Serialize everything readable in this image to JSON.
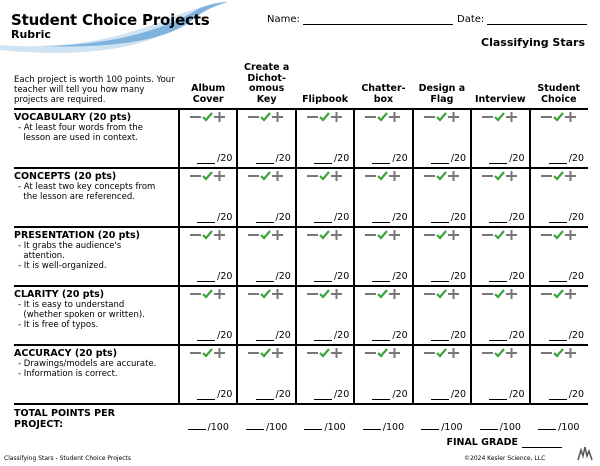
{
  "header": {
    "title": "Student Choice Projects",
    "subtitle": "Rubric",
    "name_label": "Name:",
    "date_label": "Date:",
    "topic": "Classifying Stars"
  },
  "intro": "Each project is worth 100 points. Your teacher will tell you how many projects are required.",
  "columns": [
    {
      "line1": "Album",
      "line2": "Cover"
    },
    {
      "line1": "Create a Dichot-",
      "line2": "omous Key"
    },
    {
      "line1": "",
      "line2": "Flipbook"
    },
    {
      "line1": "Chatter-",
      "line2": "box"
    },
    {
      "line1": "Design a",
      "line2": "Flag"
    },
    {
      "line1": "",
      "line2": "Interview"
    },
    {
      "line1": "Student",
      "line2": "Choice"
    }
  ],
  "criteria": [
    {
      "title": "VOCABULARY (20 pts)",
      "bullets": [
        "- At least four words from the",
        "  lesson are used in context."
      ]
    },
    {
      "title": "CONCEPTS (20 pts)",
      "bullets": [
        "- At least two key concepts from",
        "  the lesson are referenced."
      ]
    },
    {
      "title": "PRESENTATION (20 pts)",
      "bullets": [
        "- It grabs the audience's",
        "  attention.",
        "- It is well-organized."
      ]
    },
    {
      "title": "CLARITY (20 pts)",
      "bullets": [
        "- It is easy to understand",
        "  (whether spoken or written).",
        "- It is free of typos."
      ]
    },
    {
      "title": "ACCURACY (20 pts)",
      "bullets": [
        "- Drawings/models are accurate.",
        "- Information is correct."
      ]
    }
  ],
  "criterion_points": "/20",
  "total": {
    "line1": "TOTAL POINTS PER",
    "line2": "PROJECT:",
    "points": "/100"
  },
  "final_grade_label": "FINAL GRADE",
  "footer": {
    "left": "Classifying Stars - Student Choice Projects",
    "right": "©2024  Kesler Science, LLC"
  },
  "colors": {
    "check": "#3aa33a",
    "accent": "#2d7fc4"
  }
}
